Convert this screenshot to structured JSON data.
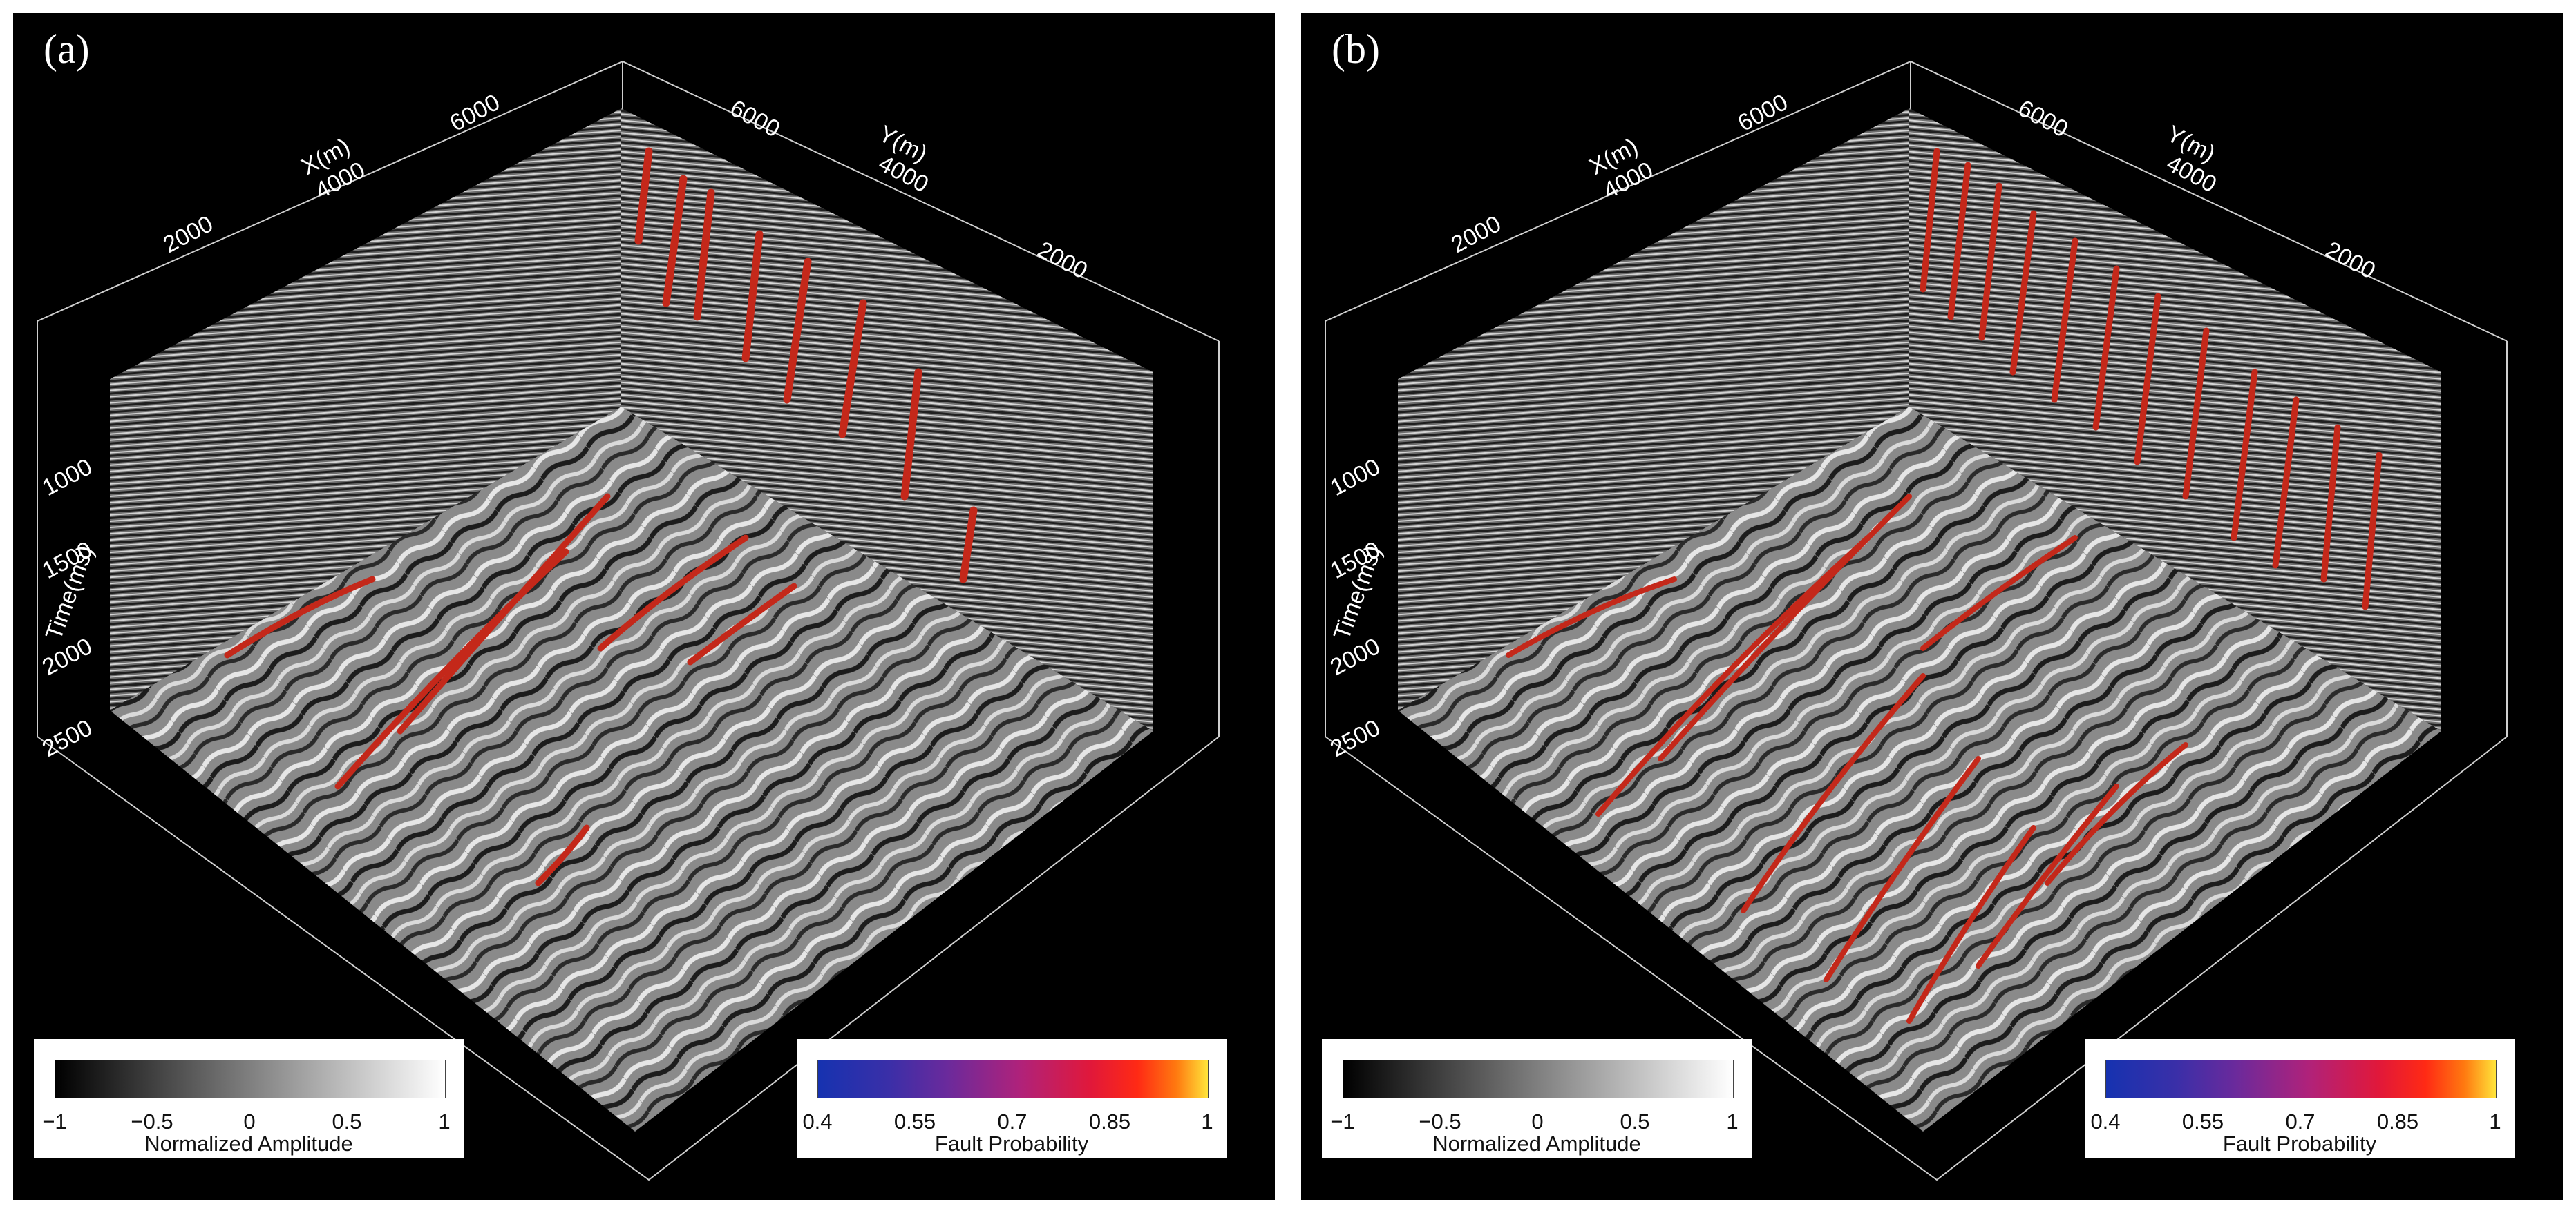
{
  "panels": [
    {
      "id": "a",
      "letter": "(a)",
      "fault_density": "sparse"
    },
    {
      "id": "b",
      "letter": "(b)",
      "fault_density": "dense"
    }
  ],
  "axes": {
    "x": {
      "label": "X(m)",
      "ticks": [
        "2000",
        "4000",
        "6000"
      ]
    },
    "y": {
      "label": "Y(m)",
      "ticks": [
        "6000",
        "4000",
        "2000"
      ]
    },
    "time": {
      "label": "Time(ms)",
      "ticks": [
        "1000",
        "1500",
        "2000",
        "2500"
      ]
    }
  },
  "colorbars": {
    "amplitude": {
      "title": "Normalized Amplitude",
      "ticks": [
        "−1",
        "−0.5",
        "0",
        "0.5",
        "1"
      ],
      "colors": [
        "#000000",
        "#ffffff"
      ]
    },
    "probability": {
      "title": "Fault Probability",
      "ticks": [
        "0.4",
        "0.55",
        "0.7",
        "0.85",
        "1"
      ],
      "colors": [
        "#1632b0",
        "#6a2a9c",
        "#e1183a",
        "#ff2a14",
        "#ffe43a"
      ]
    }
  },
  "colors": {
    "background": "#000000",
    "fault": "#c4281a",
    "fault_highlight": "#ffb020"
  }
}
